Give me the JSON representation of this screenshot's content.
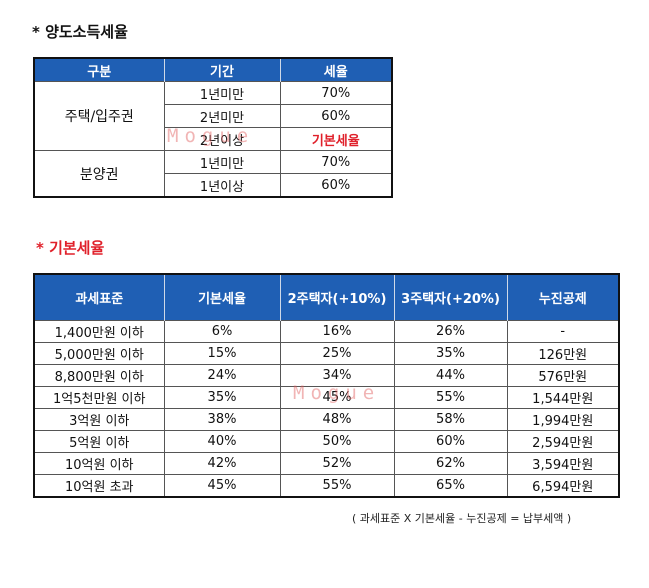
{
  "section1": {
    "title": "* 양도소득세율",
    "headers": [
      "구분",
      "기간",
      "세율"
    ],
    "groups": [
      {
        "label": "주택/입주권",
        "rows": [
          {
            "period": "1년미만",
            "rate": "70%"
          },
          {
            "period": "2년미만",
            "rate": "60%"
          },
          {
            "period": "2년이상",
            "rate": "기본세율",
            "highlight": true
          }
        ]
      },
      {
        "label": "분양권",
        "rows": [
          {
            "period": "1년미만",
            "rate": "70%"
          },
          {
            "period": "1년이상",
            "rate": "60%"
          }
        ]
      }
    ]
  },
  "section2": {
    "title": "* 기본세율",
    "headers": [
      "과세표준",
      "기본세율",
      "2주택자(+10%)",
      "3주택자(+20%)",
      "누진공제"
    ],
    "rows": [
      [
        "1,400만원 이하",
        "6%",
        "16%",
        "26%",
        "-"
      ],
      [
        "5,000만원 이하",
        "15%",
        "25%",
        "35%",
        "126만원"
      ],
      [
        "8,800만원 이하",
        "24%",
        "34%",
        "44%",
        "576만원"
      ],
      [
        "1억5천만원 이하",
        "35%",
        "45%",
        "55%",
        "1,544만원"
      ],
      [
        "3억원 이하",
        "38%",
        "48%",
        "58%",
        "1,994만원"
      ],
      [
        "5억원 이하",
        "40%",
        "50%",
        "60%",
        "2,594만원"
      ],
      [
        "10억원 이하",
        "42%",
        "52%",
        "62%",
        "3,594만원"
      ],
      [
        "10억원 초과",
        "45%",
        "55%",
        "65%",
        "6,594만원"
      ]
    ],
    "formula": "( 과세표준 X 기본세율 -  누진공제 = 납부세액 )"
  },
  "watermark": "Mogue",
  "colors": {
    "header_bg": "#1f5fb4",
    "accent_red": "#e0202a"
  }
}
